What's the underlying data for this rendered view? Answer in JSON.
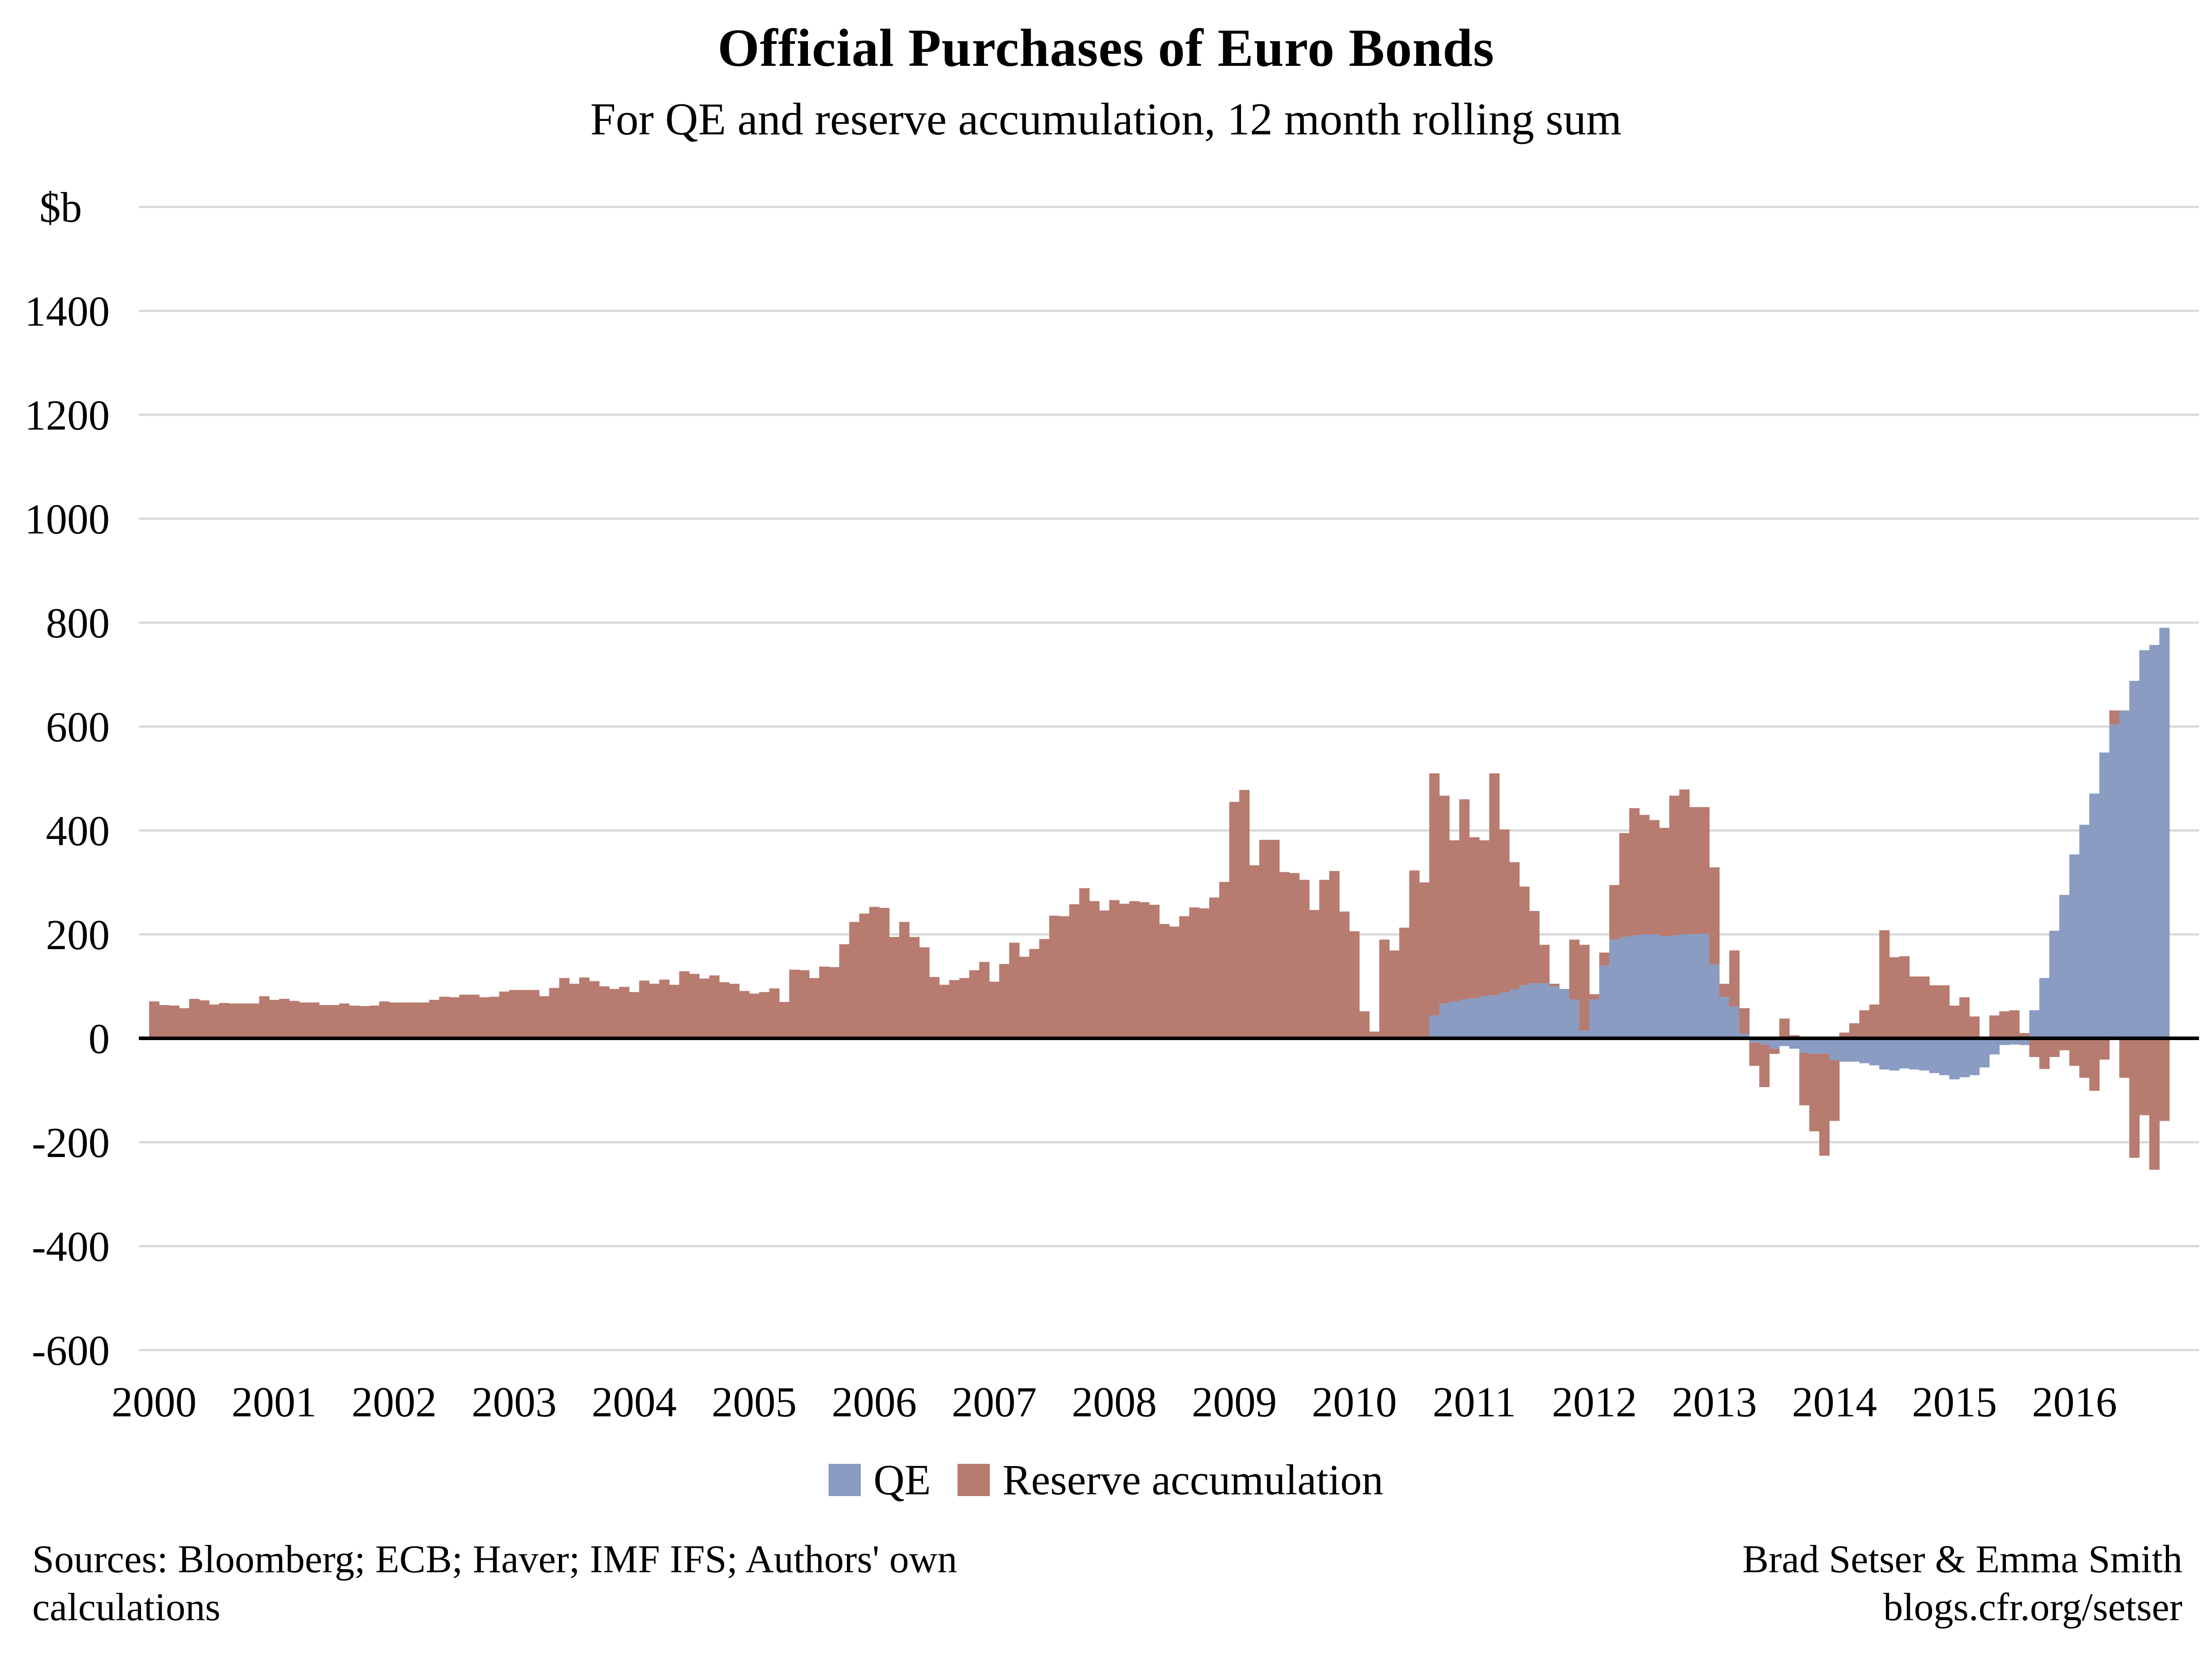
{
  "chart_data": {
    "type": "bar",
    "stacking": "stacked",
    "title": "Official Purchases of Euro Bonds",
    "subtitle": "For QE and reserve accumulation, 12 month rolling sum",
    "ylabel": "$b",
    "xlabel": "",
    "ylim": [
      -600,
      1600
    ],
    "grid": "horizontal",
    "legend_position": "bottom",
    "y_ticks": [
      1400,
      1200,
      1000,
      800,
      600,
      400,
      200,
      0,
      -200,
      -400,
      -600
    ],
    "gridline_values": [
      1600,
      1400,
      1200,
      1000,
      800,
      600,
      400,
      200,
      0,
      -200,
      -400,
      -600
    ],
    "gridline_color": "#D8D8D8",
    "axis_color": "#000000",
    "x_tick_years": [
      "2000",
      "2001",
      "2002",
      "2003",
      "2004",
      "2005",
      "2006",
      "2007",
      "2008",
      "2009",
      "2010",
      "2011",
      "2012",
      "2013",
      "2014",
      "2015",
      "2016"
    ],
    "x_start": "2000-01",
    "x_freq": "monthly",
    "n_months": 202,
    "series": [
      {
        "name": "QE",
        "color": "#8A9CC2",
        "values": [
          0,
          0,
          0,
          0,
          0,
          0,
          0,
          0,
          0,
          0,
          0,
          0,
          0,
          0,
          0,
          0,
          0,
          0,
          0,
          0,
          0,
          0,
          0,
          0,
          0,
          0,
          0,
          0,
          0,
          0,
          0,
          0,
          0,
          0,
          0,
          0,
          0,
          0,
          0,
          0,
          0,
          0,
          0,
          0,
          0,
          0,
          0,
          0,
          0,
          0,
          0,
          0,
          0,
          0,
          0,
          0,
          0,
          0,
          0,
          0,
          0,
          0,
          0,
          0,
          0,
          0,
          0,
          0,
          0,
          0,
          0,
          0,
          0,
          0,
          0,
          0,
          0,
          0,
          0,
          0,
          0,
          0,
          0,
          0,
          0,
          0,
          0,
          0,
          0,
          0,
          0,
          0,
          0,
          0,
          0,
          0,
          0,
          0,
          0,
          0,
          0,
          0,
          0,
          0,
          0,
          0,
          0,
          0,
          0,
          0,
          0,
          0,
          0,
          0,
          0,
          0,
          0,
          0,
          0,
          0,
          0,
          0,
          0,
          0,
          0,
          0,
          0,
          0,
          44,
          67,
          71,
          75,
          77,
          81,
          83,
          88,
          94,
          102,
          106,
          106,
          100,
          95,
          75,
          15,
          75,
          140,
          190,
          195,
          198,
          200,
          200,
          196,
          198,
          200,
          201,
          201,
          142,
          80,
          61,
          9,
          -8,
          -12,
          -20,
          -15,
          -20,
          -28,
          -30,
          -30,
          -42,
          -45,
          -45,
          -48,
          -52,
          -60,
          -62,
          -58,
          -60,
          -62,
          -67,
          -71,
          -79,
          -75,
          -71,
          -56,
          -31,
          -13,
          -12,
          -13,
          54,
          116,
          207,
          276,
          354,
          411,
          471,
          550,
          604,
          631,
          688,
          747,
          757,
          790
        ]
      },
      {
        "name": "Reserve accumulation",
        "color": "#B77B6F",
        "values": [
          71,
          64,
          63,
          58,
          76,
          73,
          65,
          68,
          67,
          67,
          67,
          81,
          74,
          76,
          72,
          69,
          69,
          64,
          64,
          67,
          63,
          62,
          63,
          71,
          69,
          69,
          69,
          69,
          74,
          80,
          79,
          84,
          84,
          79,
          80,
          90,
          93,
          93,
          93,
          81,
          97,
          116,
          105,
          117,
          110,
          100,
          95,
          99,
          89,
          111,
          105,
          113,
          103,
          129,
          124,
          115,
          121,
          108,
          105,
          91,
          86,
          89,
          96,
          70,
          132,
          131,
          116,
          138,
          137,
          181,
          224,
          240,
          253,
          251,
          195,
          224,
          195,
          175,
          118,
          103,
          112,
          116,
          131,
          147,
          109,
          143,
          184,
          157,
          172,
          191,
          236,
          235,
          258,
          289,
          264,
          246,
          266,
          259,
          264,
          262,
          257,
          220,
          215,
          235,
          252,
          250,
          271,
          301,
          455,
          478,
          333,
          382,
          382,
          320,
          318,
          305,
          247,
          305,
          322,
          244,
          206,
          52,
          13,
          190,
          169,
          213,
          323,
          300,
          466,
          400,
          310,
          385,
          310,
          300,
          427,
          314,
          245,
          190,
          139,
          74,
          5,
          0,
          115,
          165,
          10,
          25,
          105,
          200,
          245,
          230,
          220,
          209,
          269,
          279,
          244,
          244,
          187,
          25,
          108,
          49,
          -45,
          -82,
          -10,
          38,
          6,
          -101,
          -149,
          -196,
          -117,
          11,
          29,
          54,
          65,
          208,
          156,
          158,
          119,
          119,
          102,
          102,
          63,
          79,
          42,
          0,
          44,
          52,
          54,
          10,
          -36,
          -59,
          -36,
          -23,
          -53,
          -76,
          -101,
          -41,
          27,
          -76,
          -230,
          -148,
          -253,
          -159
        ]
      }
    ]
  },
  "footer": {
    "sources": "Sources: Bloomberg; ECB; Haver; IMF IFS; Authors' own calculations",
    "credit_line1": "Brad Setser & Emma Smith",
    "credit_line2": "blogs.cfr.org/setser"
  }
}
